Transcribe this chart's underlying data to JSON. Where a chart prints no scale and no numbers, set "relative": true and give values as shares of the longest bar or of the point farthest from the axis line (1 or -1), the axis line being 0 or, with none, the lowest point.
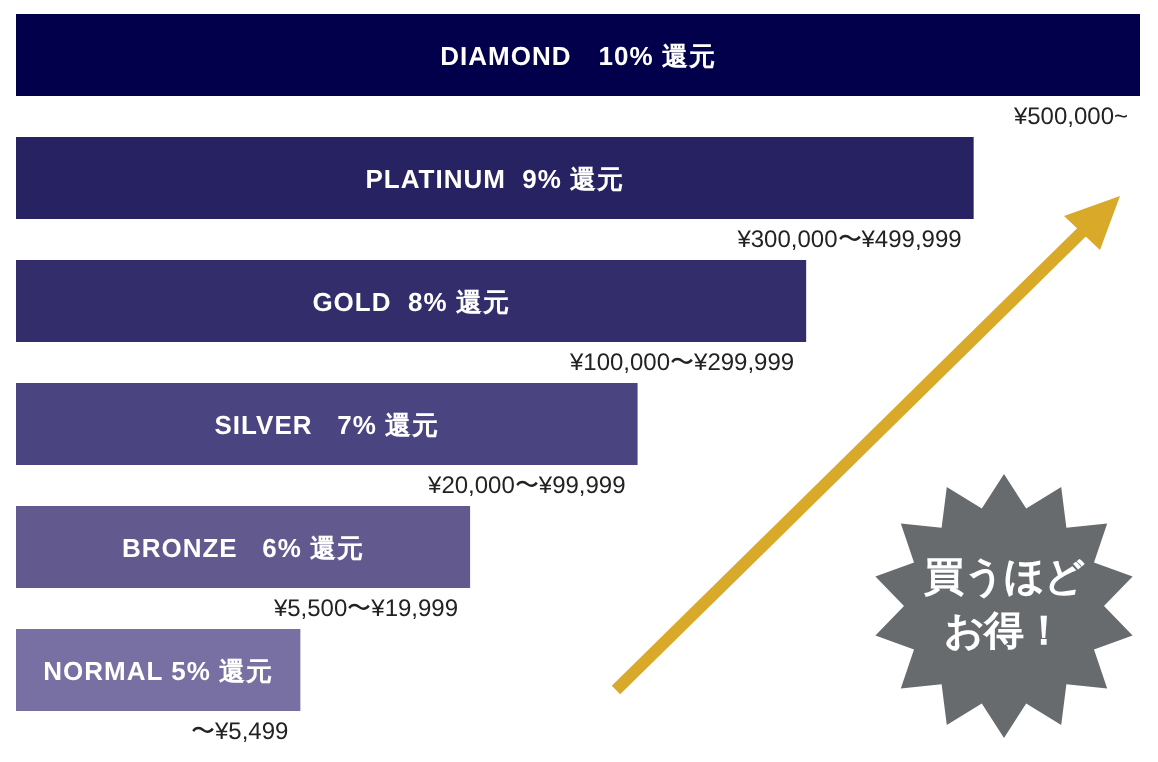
{
  "chart_data": {
    "type": "bar",
    "orientation": "horizontal",
    "relative": true,
    "categories": [
      "DIAMOND　10% 還元",
      "PLATINUM  9% 還元",
      "GOLD  8% 還元",
      "SILVER   7% 還元",
      "BRONZE   6% 還元",
      "NORMAL 5% 還元"
    ],
    "values": [
      1,
      0.852,
      0.703,
      0.553,
      0.404,
      0.253
    ],
    "colors": [
      "#03004b",
      "#272262",
      "#332e6b",
      "#4a4480",
      "#625a8e",
      "#7870a3"
    ],
    "annotations": [
      {
        "text": "¥500,000~",
        "x": 1,
        "y": "DIAMOND　10% 還元"
      },
      {
        "text": "¥300,000〜¥499,999",
        "x": 0.852,
        "y": "PLATINUM  9% 還元"
      },
      {
        "text": "¥100,000〜¥299,999",
        "x": 0.703,
        "y": "GOLD  8% 還元"
      },
      {
        "text": "¥20,000〜¥99,999",
        "x": 0.553,
        "y": "SILVER   7% 還元"
      },
      {
        "text": "¥5,500〜¥19,999",
        "x": 0.404,
        "y": "BRONZE   6% 還元"
      },
      {
        "text": "〜¥5,499",
        "x": 0.253,
        "y": "NORMAL 5% 還元"
      },
      "買うほど",
      "お得！"
    ]
  }
}
